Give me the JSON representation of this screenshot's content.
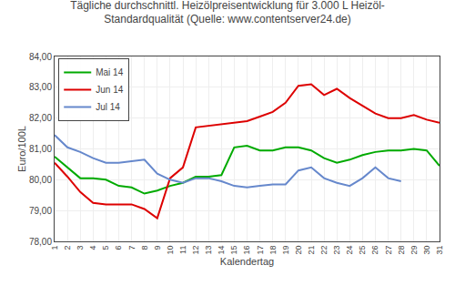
{
  "chart_data": {
    "type": "line",
    "title": "Tägliche durchschnittl. Heizölpreisentwicklung für 3.000 L Heizöl-\nStandardqualität (Quelle: www.contentserver24.de)",
    "xlabel": "Kalendertag",
    "ylabel": "Euro/100L",
    "x": [
      1,
      2,
      3,
      4,
      5,
      6,
      7,
      8,
      9,
      10,
      11,
      12,
      13,
      14,
      15,
      16,
      17,
      18,
      19,
      20,
      21,
      22,
      23,
      24,
      25,
      26,
      27,
      28,
      29,
      30,
      31
    ],
    "xlim": [
      1,
      31
    ],
    "xticks": [
      1,
      2,
      3,
      4,
      5,
      6,
      7,
      8,
      9,
      10,
      11,
      12,
      13,
      14,
      15,
      16,
      17,
      18,
      19,
      20,
      21,
      22,
      23,
      24,
      25,
      26,
      27,
      28,
      29,
      30,
      31
    ],
    "ylim": [
      78.0,
      84.0
    ],
    "yticks": [
      {
        "value": 78.0,
        "label": "78,00"
      },
      {
        "value": 79.0,
        "label": "79,00"
      },
      {
        "value": 80.0,
        "label": "80,00"
      },
      {
        "value": 81.0,
        "label": "81,00"
      },
      {
        "value": 82.0,
        "label": "82,00"
      },
      {
        "value": 83.0,
        "label": "83,00"
      },
      {
        "value": 84.0,
        "label": "84,00"
      }
    ],
    "grid": true,
    "legend": "upper left",
    "series": [
      {
        "name": "Mai 14",
        "color": "#00AA00",
        "values": [
          80.75,
          80.4,
          80.05,
          80.05,
          80.0,
          79.8,
          79.75,
          79.55,
          79.65,
          79.8,
          79.9,
          80.1,
          80.1,
          80.15,
          81.05,
          81.1,
          80.95,
          80.95,
          81.05,
          81.05,
          80.95,
          80.7,
          80.55,
          80.65,
          80.8,
          80.9,
          80.95,
          80.95,
          81.0,
          80.95,
          80.45
        ]
      },
      {
        "name": "Jun 14",
        "color": "#DD0000",
        "values": [
          80.55,
          80.1,
          79.6,
          79.25,
          79.2,
          79.2,
          79.2,
          79.05,
          78.75,
          80.05,
          80.4,
          81.7,
          81.75,
          81.8,
          81.85,
          81.9,
          82.05,
          82.2,
          82.5,
          83.05,
          83.1,
          82.75,
          82.95,
          82.65,
          82.4,
          82.15,
          82.0,
          82.0,
          82.1,
          81.95,
          81.85
        ]
      },
      {
        "name": "Jul 14",
        "color": "#6688CC",
        "values": [
          81.45,
          81.05,
          80.9,
          80.7,
          80.55,
          80.55,
          80.6,
          80.65,
          80.2,
          80.0,
          79.9,
          80.05,
          80.05,
          79.95,
          79.8,
          79.75,
          79.8,
          79.85,
          79.85,
          80.3,
          80.4,
          80.05,
          79.9,
          79.8,
          80.05,
          80.4,
          80.05,
          79.95,
          null,
          null,
          null
        ]
      }
    ]
  }
}
